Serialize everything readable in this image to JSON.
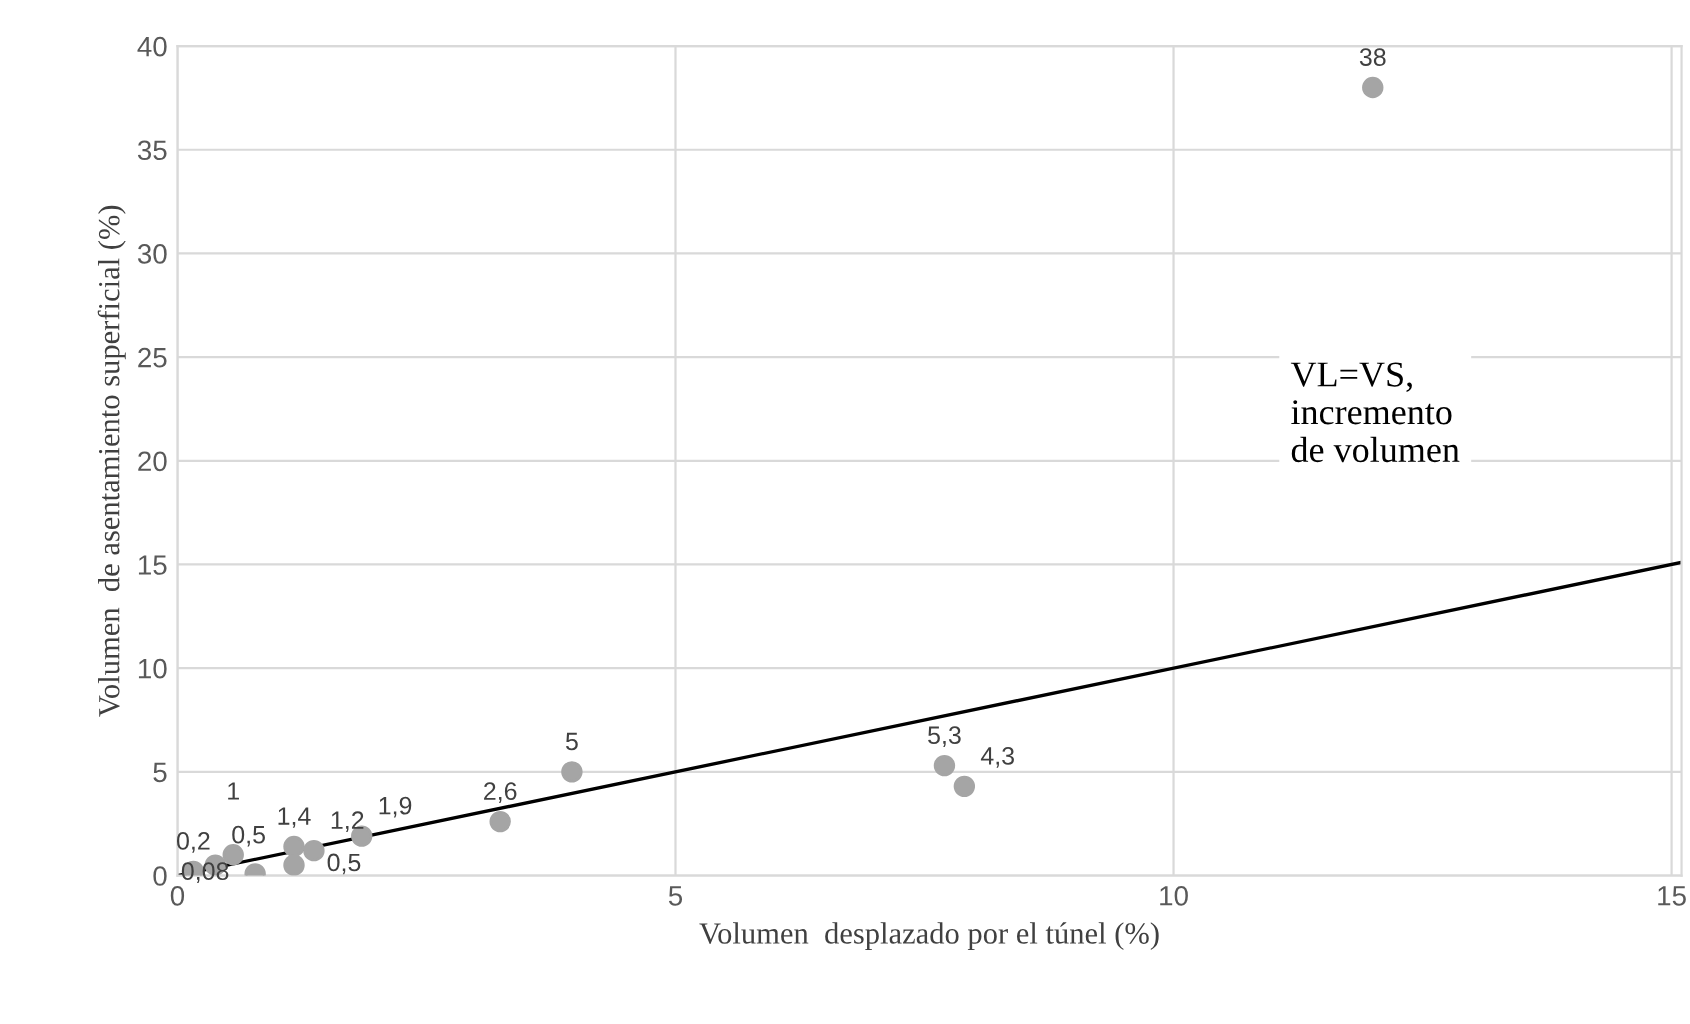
{
  "chart_data": {
    "type": "scatter",
    "xlabel": "Volumen  desplazado por el túnel (%)",
    "ylabel": "Volumen  de asentamiento superficial (%)",
    "xlim": [
      0,
      15.1
    ],
    "ylim": [
      0,
      40
    ],
    "xticks": [
      0,
      5,
      10,
      15
    ],
    "yticks": [
      0,
      5,
      10,
      15,
      20,
      25,
      30,
      35,
      40
    ],
    "grid": true,
    "marker": "circle",
    "annotations": [
      "VL=VS,\nincremento\nde volumen"
    ],
    "series": [
      {
        "color": "#a5a5a5",
        "x": [
          0.16,
          0.38,
          0.56,
          0.78,
          1.17,
          1.17,
          1.37,
          1.85,
          3.24,
          3.96,
          7.7,
          7.9,
          12.0
        ],
        "values": [
          0.2,
          0.5,
          1,
          0.08,
          1.4,
          0.5,
          1.2,
          1.9,
          2.6,
          5,
          5.3,
          4.3,
          38
        ],
        "value_labels": [
          "0,2",
          "0,5",
          "1",
          "0,08",
          "1,4",
          "0,5",
          "1,2",
          "1,9",
          "2,6",
          "5",
          "5,3",
          "4,3",
          "38"
        ]
      },
      {
        "type": "line",
        "color": "#000000",
        "x": [
          0,
          15.1
        ],
        "values": [
          0,
          15.1
        ],
        "marker": "none"
      }
    ]
  }
}
